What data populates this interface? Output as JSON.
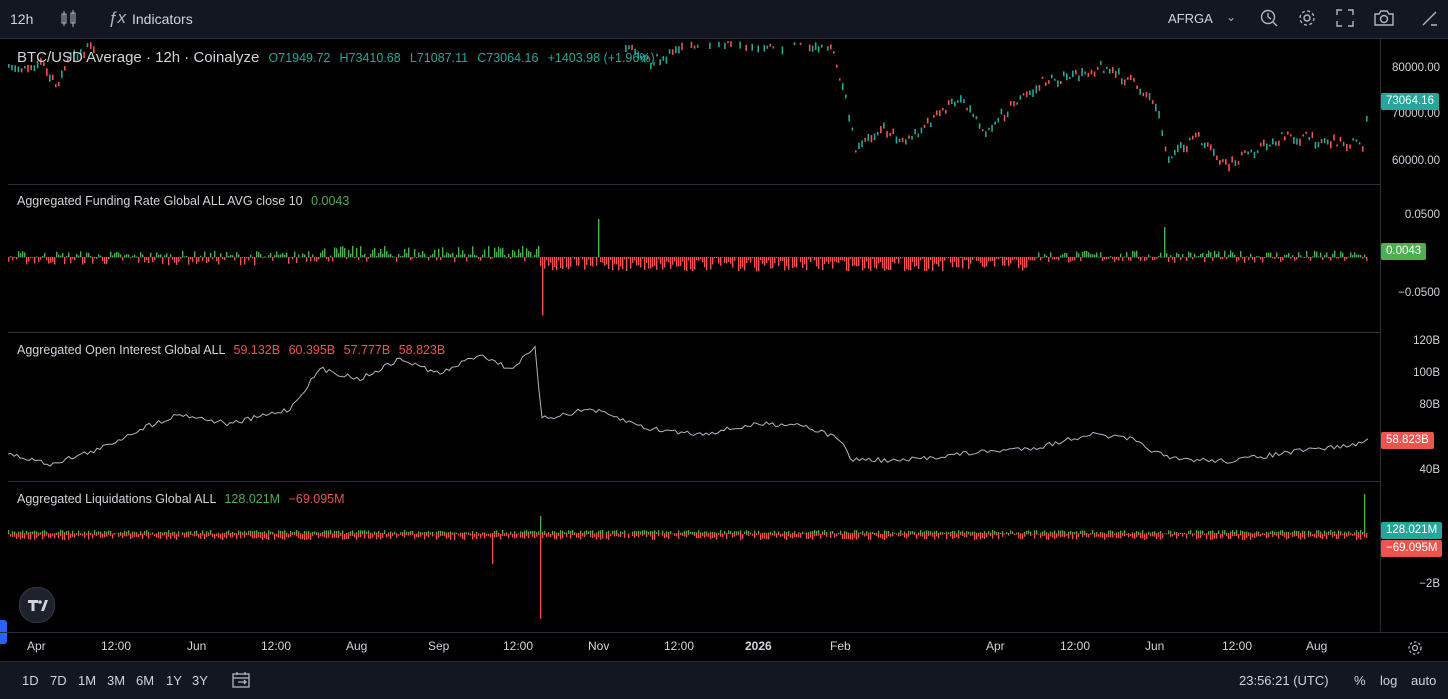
{
  "toolbar": {
    "interval": "12h",
    "indicators_label": "Indicators",
    "symbol_right": "AFRGA"
  },
  "main_pane": {
    "title": "BTC/USD Average · 12h · Coinalyze",
    "open": "O71949.72",
    "high": "H73410.68",
    "low": "L71087.11",
    "close": "C73064.16",
    "change": "+1403.98 (+1.96%)",
    "ticks": [
      "80000.00",
      "70000.00",
      "60000.00"
    ],
    "last_label": "73064.16",
    "last_color": "#26a69a"
  },
  "funding_pane": {
    "title": "Aggregated Funding Rate Global ALL AVG close 10",
    "value": "0.0043",
    "ticks": [
      "0.0500",
      "−0.0500"
    ],
    "last_label": "0.0043",
    "last_color": "#4caf50"
  },
  "oi_pane": {
    "title": "Aggregated Open Interest Global ALL",
    "values": [
      "59.132B",
      "60.395B",
      "57.777B",
      "58.823B"
    ],
    "ticks": [
      "120B",
      "100B",
      "80B",
      "40B"
    ],
    "last_label": "58.823B",
    "last_color": "#ef5350"
  },
  "liq_pane": {
    "title": "Aggregated Liquidations Global ALL",
    "long_value": "128.021M",
    "short_value": "−69.095M",
    "ticks": [
      "−2B"
    ],
    "label_long": "128.021M",
    "label_short": "−69.095M",
    "long_color": "#26a69a",
    "short_color": "#ef5350"
  },
  "time_axis": [
    "Apr",
    "12:00",
    "Jun",
    "12:00",
    "Aug",
    "Sep",
    "12:00",
    "Nov",
    "12:00",
    "2026",
    "Feb",
    "Apr",
    "12:00",
    "Jun",
    "12:00",
    "Aug"
  ],
  "bottom": {
    "ranges": [
      "1D",
      "7D",
      "1M",
      "3M",
      "6M",
      "1Y",
      "3Y"
    ],
    "clock": "23:56:21 (UTC)",
    "percent": "%",
    "log": "log",
    "auto": "auto"
  },
  "icons": [
    "candles-icon",
    "fx-icon",
    "chevron-down-icon",
    "alert-clock-icon",
    "gear-icon",
    "fullscreen-icon",
    "camera-icon",
    "draw-icon",
    "calendar-range-icon",
    "tv-logo-icon",
    "axis-settings-icon"
  ]
}
